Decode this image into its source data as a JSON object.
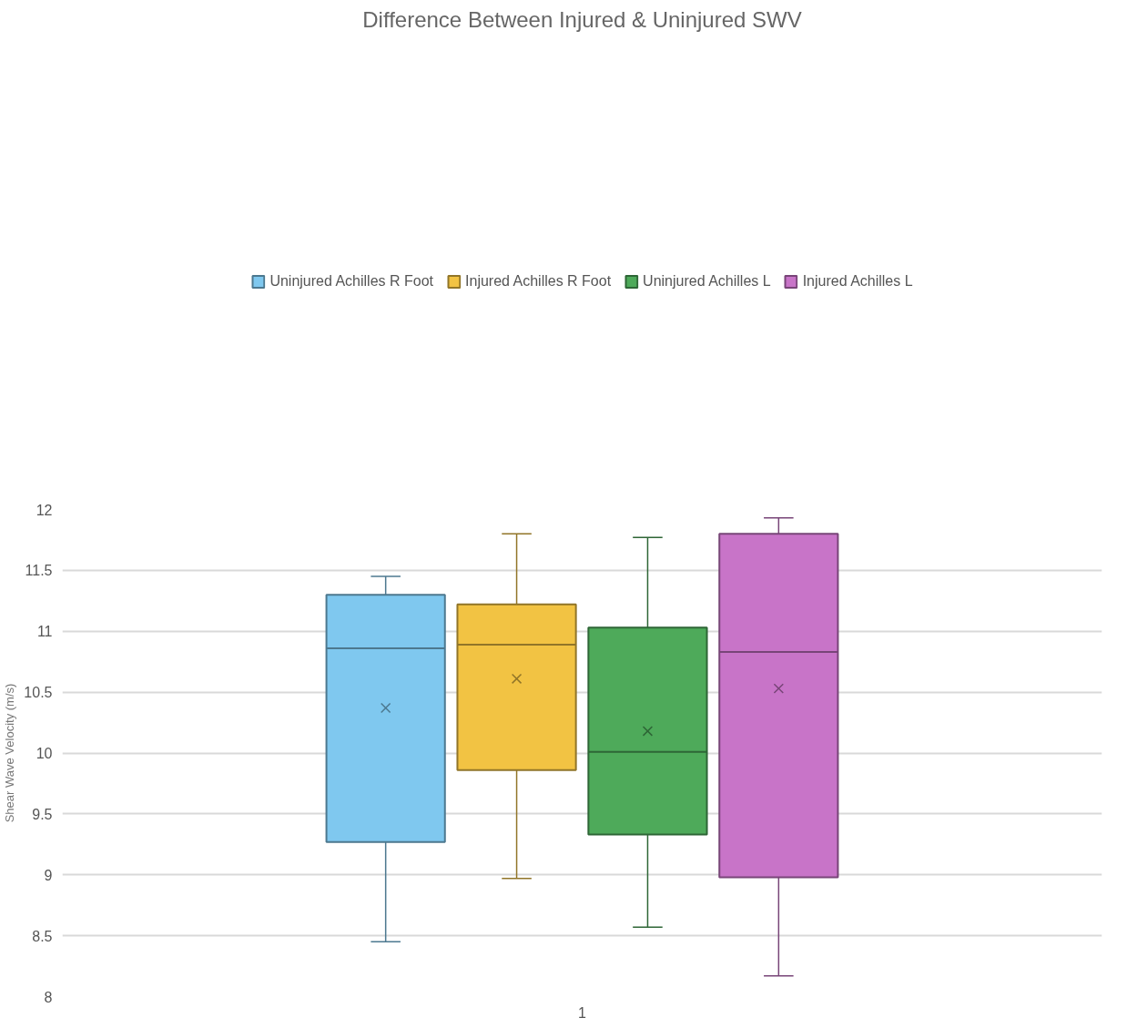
{
  "chart_data": {
    "type": "box",
    "title": "Difference Between Injured & Uninjured SWV",
    "ylabel": "Shear Wave Velocity (m/s)",
    "categories": [
      "1"
    ],
    "series": [
      {
        "name": "Uninjured Achilles R Foot",
        "color": "#7fc8ef",
        "boxes": [
          {
            "low": 8.45,
            "q1": 9.27,
            "median": 10.86,
            "q3": 11.3,
            "high": 11.45,
            "mean": 10.37
          }
        ]
      },
      {
        "name": "Injured Achilles R Foot",
        "color": "#f2c343",
        "boxes": [
          {
            "low": 8.97,
            "q1": 9.86,
            "median": 10.89,
            "q3": 11.22,
            "high": 11.8,
            "mean": 10.61
          }
        ]
      },
      {
        "name": "Uninjured Achilles L",
        "color": "#4eaa5a",
        "boxes": [
          {
            "low": 8.57,
            "q1": 9.33,
            "median": 10.01,
            "q3": 11.03,
            "high": 11.77,
            "mean": 10.18
          }
        ]
      },
      {
        "name": "Injured Achilles L",
        "color": "#c874c8",
        "boxes": [
          {
            "low": 8.17,
            "q1": 8.98,
            "median": 10.83,
            "q3": 11.8,
            "high": 11.93,
            "mean": 10.53
          }
        ]
      }
    ],
    "ylim": [
      8,
      12
    ],
    "yticks": [
      8,
      8.5,
      9,
      9.5,
      10,
      10.5,
      11,
      11.5,
      12
    ],
    "grid": "y",
    "legend": "top",
    "marker": "cross"
  }
}
